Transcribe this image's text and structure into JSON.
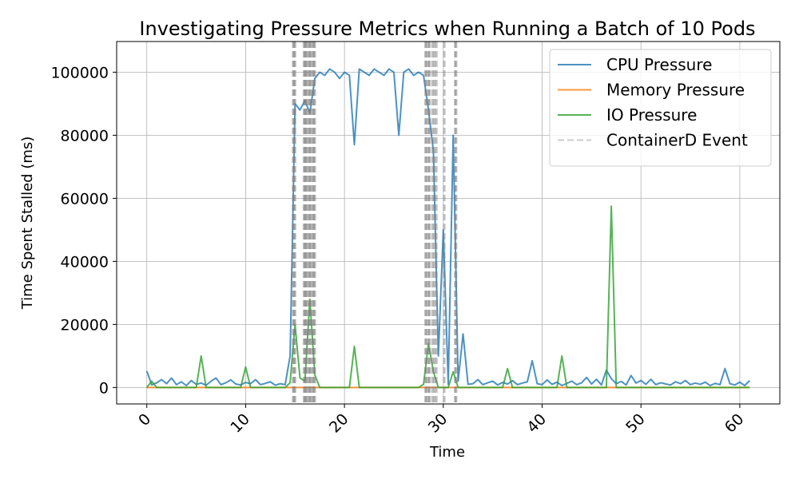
{
  "chart_data": {
    "type": "line",
    "title": "Investigating Pressure Metrics when Running a Batch of 10 Pods",
    "x_label": "Time",
    "y_label": "Time Spent Stalled (ms)",
    "x": [
      0,
      0.5,
      1,
      1.5,
      2,
      2.5,
      3,
      3.5,
      4,
      4.5,
      5,
      5.5,
      6,
      6.5,
      7,
      7.5,
      8,
      8.5,
      9,
      9.5,
      10,
      10.5,
      11,
      11.5,
      12,
      12.5,
      13,
      13.5,
      14,
      14.5,
      15,
      15.5,
      16,
      16.5,
      17,
      17.5,
      18,
      18.5,
      19,
      19.5,
      20,
      20.5,
      21,
      21.5,
      22,
      22.5,
      23,
      23.5,
      24,
      24.5,
      25,
      25.5,
      26,
      26.5,
      27,
      27.5,
      28,
      28.5,
      29,
      29.5,
      30,
      30.5,
      31,
      31.5,
      32,
      32.5,
      33,
      33.5,
      34,
      34.5,
      35,
      35.5,
      36,
      36.5,
      37,
      37.5,
      38,
      38.5,
      39,
      39.5,
      40,
      40.5,
      41,
      41.5,
      42,
      42.5,
      43,
      43.5,
      44,
      44.5,
      45,
      45.5,
      46,
      46.5,
      47,
      47.5,
      48,
      48.5,
      49,
      49.5,
      50,
      50.5,
      51,
      51.5,
      52,
      52.5,
      53,
      53.5,
      54,
      54.5,
      55,
      55.5,
      56,
      56.5,
      57,
      57.5,
      58,
      58.5,
      59,
      59.5,
      60,
      60.5,
      61
    ],
    "series": [
      {
        "name": "CPU Pressure",
        "color": "#1f77b4",
        "values": [
          5200,
          800,
          1500,
          2500,
          1200,
          3000,
          900,
          1800,
          600,
          2200,
          1000,
          1400,
          700,
          2000,
          3000,
          900,
          1500,
          2400,
          1100,
          800,
          1600,
          1200,
          2500,
          900,
          1300,
          1800,
          700,
          1200,
          900,
          10000,
          90000,
          88000,
          91000,
          87000,
          98000,
          100000,
          99000,
          101000,
          100000,
          98000,
          100000,
          99000,
          77000,
          101000,
          100000,
          99000,
          101000,
          100000,
          99000,
          101000,
          100000,
          80000,
          100000,
          101000,
          99000,
          100000,
          99000,
          88000,
          75000,
          10000,
          50000,
          1000,
          80000,
          2000,
          17000,
          1000,
          1200,
          2500,
          900,
          1500,
          2000,
          800,
          1600,
          1100,
          2200,
          900,
          1400,
          1800,
          8500,
          1200,
          900,
          2400,
          1000,
          1700,
          600,
          1300,
          2000,
          900,
          1500,
          3200,
          1100,
          2600,
          800,
          5500,
          2800,
          1200,
          1900,
          800,
          3800,
          1400,
          2200,
          1000,
          2600,
          900,
          1500,
          1100,
          800,
          1800,
          1200,
          2200,
          900,
          1400,
          1000,
          1700,
          600,
          1300,
          900,
          6000,
          1200,
          800,
          1700,
          600,
          2200
        ]
      },
      {
        "name": "Memory Pressure",
        "color": "#ff7f0e",
        "values": [
          0,
          0,
          0,
          0,
          0,
          0,
          0,
          0,
          0,
          0,
          0,
          0,
          0,
          0,
          0,
          0,
          0,
          0,
          0,
          0,
          0,
          0,
          0,
          0,
          0,
          0,
          0,
          0,
          0,
          0,
          0,
          0,
          0,
          0,
          0,
          0,
          0,
          0,
          0,
          0,
          0,
          0,
          0,
          0,
          0,
          0,
          0,
          0,
          0,
          0,
          0,
          0,
          0,
          0,
          0,
          0,
          0,
          0,
          0,
          0,
          0,
          0,
          0,
          0,
          0,
          0,
          0,
          0,
          0,
          0,
          0,
          0,
          0,
          0,
          0,
          0,
          0,
          0,
          0,
          0,
          0,
          0,
          0,
          0,
          0,
          0,
          0,
          0,
          0,
          0,
          0,
          0,
          0,
          0,
          0,
          0,
          0,
          0,
          0,
          0,
          0,
          0,
          0,
          0,
          0,
          0,
          0,
          0,
          0,
          0,
          0,
          0,
          0,
          0,
          0,
          0,
          0,
          0,
          0,
          0,
          0,
          0,
          0
        ]
      },
      {
        "name": "IO Pressure",
        "color": "#2ca02c",
        "values": [
          0,
          2000,
          0,
          0,
          0,
          0,
          0,
          0,
          0,
          0,
          0,
          10000,
          0,
          0,
          0,
          0,
          0,
          0,
          0,
          0,
          6500,
          0,
          0,
          0,
          0,
          0,
          0,
          0,
          0,
          1500,
          20000,
          3000,
          2000,
          28000,
          4000,
          0,
          0,
          0,
          0,
          0,
          0,
          0,
          13000,
          0,
          0,
          0,
          0,
          0,
          0,
          0,
          0,
          0,
          0,
          0,
          0,
          0,
          1000,
          14000,
          5000,
          0,
          0,
          0,
          5000,
          0,
          0,
          0,
          0,
          0,
          0,
          0,
          0,
          0,
          0,
          6000,
          0,
          0,
          0,
          0,
          0,
          0,
          0,
          0,
          0,
          0,
          10000,
          0,
          0,
          0,
          0,
          0,
          0,
          0,
          0,
          0,
          57500,
          0,
          0,
          0,
          0,
          0,
          0,
          0,
          0,
          0,
          0,
          0,
          0,
          0,
          0,
          0,
          0,
          0,
          0,
          0,
          0,
          0,
          0,
          0,
          0,
          0,
          0,
          0,
          0
        ]
      }
    ],
    "events": {
      "name": "ContainerD Event",
      "color": "#808080",
      "x": [
        14.8,
        14.9,
        15.0,
        15.9,
        16.0,
        16.1,
        16.2,
        16.4,
        16.5,
        16.6,
        16.8,
        16.9,
        17.0,
        28.2,
        28.3,
        28.5,
        28.6,
        28.9,
        29.1,
        29.3,
        30.1,
        31.2,
        31.3
      ]
    },
    "xlim": [
      -3.05,
      64.05
    ],
    "ylim": [
      -5225,
      109725
    ],
    "xticks": [
      0,
      10,
      20,
      30,
      40,
      50,
      60
    ],
    "yticks": [
      0,
      20000,
      40000,
      60000,
      80000,
      100000
    ],
    "grid": true,
    "legend": "upper right"
  }
}
